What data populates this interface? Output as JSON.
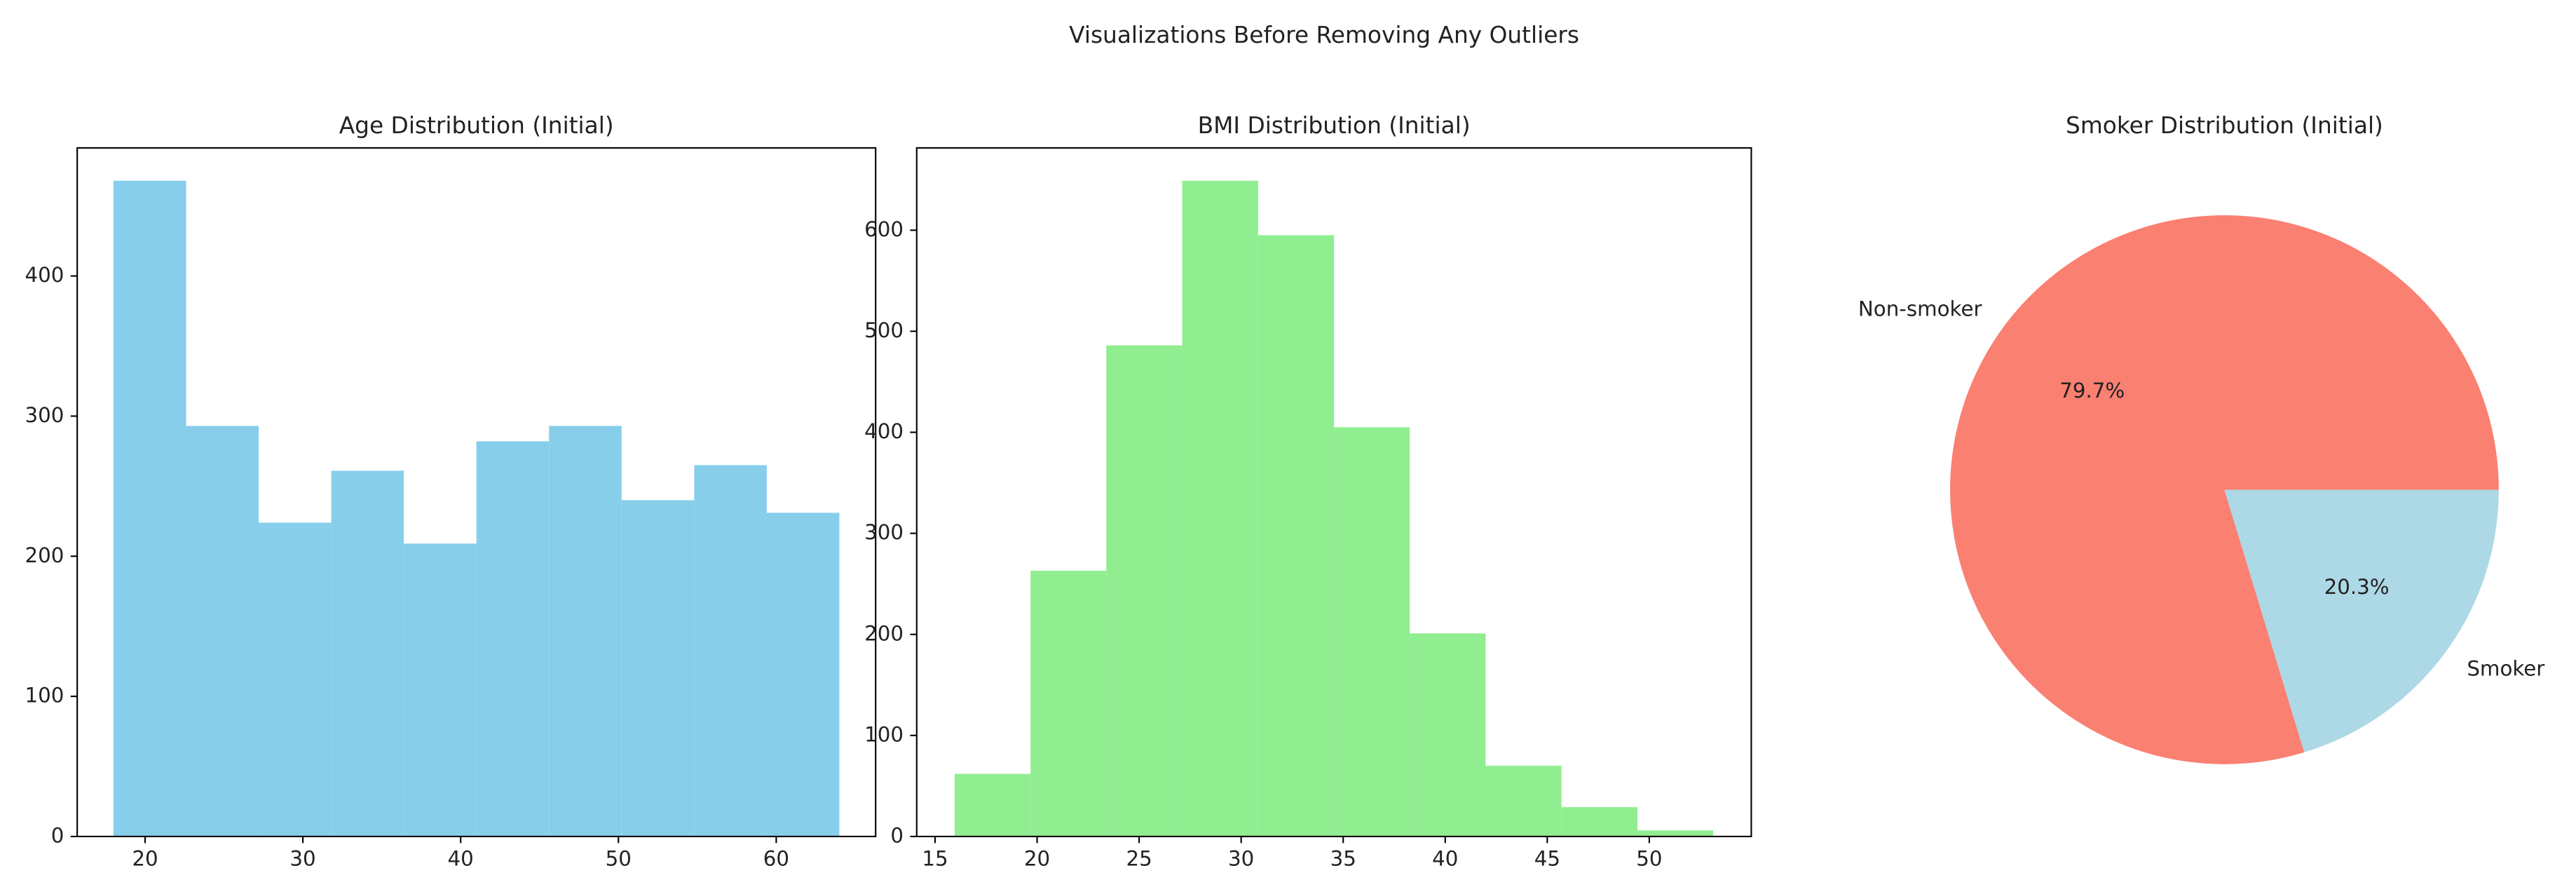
{
  "title": "Visualizations Before Removing Any Outliers",
  "chart_data": [
    {
      "type": "histogram",
      "title": "Age Distribution (Initial)",
      "bins": [
        18,
        22.6,
        27.2,
        31.8,
        36.4,
        41,
        45.6,
        50.2,
        54.8,
        59.4,
        64
      ],
      "values": [
        468,
        293,
        224,
        261,
        209,
        282,
        293,
        240,
        265,
        231
      ],
      "color": "#87ceeb",
      "xlim": [
        15.7,
        66.3
      ],
      "xticks": [
        20,
        30,
        40,
        50,
        60
      ],
      "ylim": [
        0,
        491.4
      ],
      "yticks": [
        0,
        100,
        200,
        300,
        400
      ]
    },
    {
      "type": "histogram",
      "title": "BMI Distribution (Initial)",
      "bins": [
        15.96,
        19.68,
        23.39,
        27.11,
        30.83,
        34.55,
        38.26,
        41.98,
        45.7,
        49.42,
        53.13
      ],
      "values": [
        62,
        263,
        486,
        649,
        595,
        405,
        201,
        70,
        29,
        6
      ],
      "color": "#90ee90",
      "xlim": [
        14.1,
        55.0
      ],
      "xticks": [
        15,
        20,
        25,
        30,
        35,
        40,
        45,
        50
      ],
      "ylim": [
        0,
        681.45
      ],
      "yticks": [
        0,
        100,
        200,
        300,
        400,
        500,
        600
      ]
    },
    {
      "type": "pie",
      "title": "Smoker Distribution (Initial)",
      "categories": [
        "Non-smoker",
        "Smoker"
      ],
      "values": [
        79.7,
        20.3
      ],
      "value_labels": [
        "79.7%",
        "20.3%"
      ],
      "colors": [
        "#fa8072",
        "#add8e6"
      ]
    }
  ]
}
